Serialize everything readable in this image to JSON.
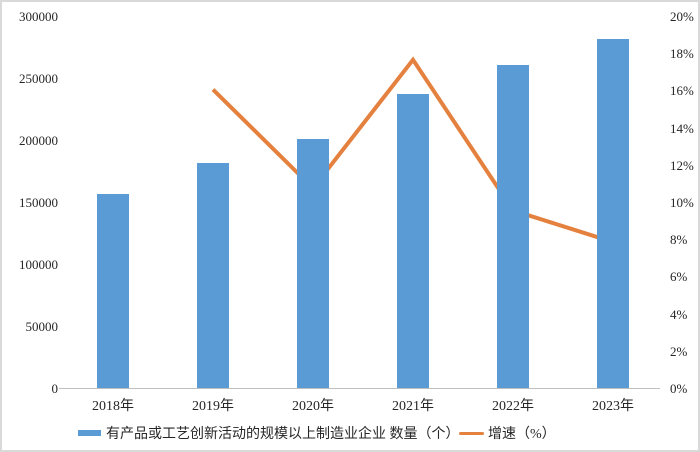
{
  "chart_data": {
    "type": "bar",
    "subtype": "combo-bar-line",
    "title": "",
    "categories": [
      "2018年",
      "2019年",
      "2020年",
      "2021年",
      "2022年",
      "2023年"
    ],
    "series": [
      {
        "name": "有产品或工艺创新活动的规模以上制造业企业 数量（个）",
        "type": "bar",
        "axis": "left",
        "values": [
          157000,
          182000,
          202000,
          238000,
          261000,
          282000
        ],
        "color": "#5B9BD5"
      },
      {
        "name": "增速（%）",
        "type": "line",
        "axis": "right",
        "values": [
          null,
          16.1,
          10.8,
          17.7,
          9.6,
          7.9
        ],
        "color": "#E5813F"
      }
    ],
    "left_axis": {
      "min": 0,
      "max": 300000,
      "ticks": [
        "0",
        "50000",
        "100000",
        "150000",
        "200000",
        "250000",
        "300000"
      ]
    },
    "right_axis": {
      "min": 0,
      "max": 20,
      "ticks": [
        "0%",
        "2%",
        "4%",
        "6%",
        "8%",
        "10%",
        "12%",
        "14%",
        "16%",
        "18%",
        "20%"
      ]
    },
    "grid": false,
    "legend_position": "bottom",
    "axis_line_color": "#BFBFBF",
    "text_color": "#262626",
    "background_color": "#FFFFFF"
  }
}
